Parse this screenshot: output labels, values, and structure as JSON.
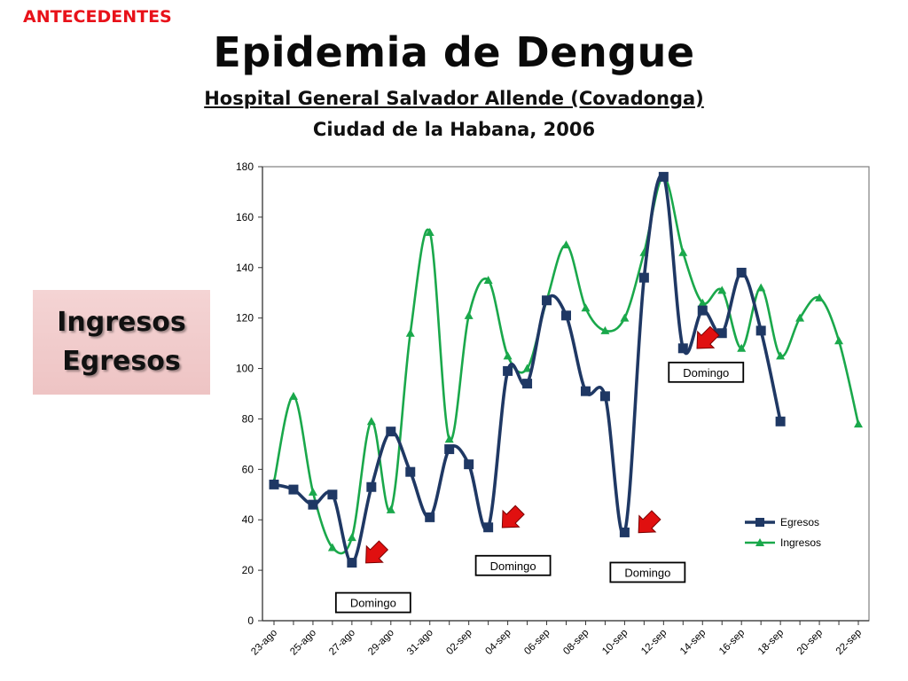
{
  "slide": {
    "section_label": "ANTECEDENTES",
    "title": "Epidemia de Dengue",
    "subtitle_line1": "Hospital General Salvador Allende (Covadonga)",
    "subtitle_line2": "Ciudad de la Habana, 2006",
    "side_box": {
      "line1": "Ingresos",
      "line2": "Egresos"
    }
  },
  "colors": {
    "egresos": "#1f3864",
    "ingresos": "#1aa84b",
    "section_label": "#e8121a",
    "arrow": "#e01010"
  },
  "chart_data": {
    "type": "line",
    "title": "",
    "xlabel": "",
    "ylabel": "",
    "ylim": [
      0,
      180
    ],
    "yticks": [
      0,
      20,
      40,
      60,
      80,
      100,
      120,
      140,
      160,
      180
    ],
    "grid": false,
    "legend_position": "bottom-right",
    "x": [
      "23-ago",
      "24-ago",
      "25-ago",
      "26-ago",
      "27-ago",
      "28-ago",
      "29-ago",
      "30-ago",
      "31-ago",
      "01-sep",
      "02-sep",
      "03-sep",
      "04-sep",
      "05-sep",
      "06-sep",
      "07-sep",
      "08-sep",
      "09-sep",
      "10-sep",
      "11-sep",
      "12-sep",
      "13-sep",
      "14-sep",
      "15-sep",
      "16-sep",
      "17-sep",
      "18-sep",
      "19-sep",
      "20-sep",
      "21-sep",
      "22-sep"
    ],
    "x_tick_labels": [
      "23-ago",
      "25-ago",
      "27-ago",
      "29-ago",
      "31-ago",
      "02-sep",
      "04-sep",
      "06-sep",
      "08-sep",
      "10-sep",
      "12-sep",
      "14-sep",
      "16-sep",
      "18-sep",
      "20-sep",
      "22-sep"
    ],
    "series": [
      {
        "name": "Egresos",
        "marker": "square",
        "values": [
          54,
          52,
          46,
          50,
          23,
          53,
          75,
          59,
          41,
          68,
          62,
          37,
          99,
          94,
          127,
          121,
          91,
          89,
          35,
          136,
          176,
          108,
          123,
          114,
          138,
          115,
          79,
          null,
          null,
          null,
          null
        ]
      },
      {
        "name": "Ingresos",
        "marker": "triangle",
        "values": [
          55,
          89,
          51,
          29,
          33,
          79,
          44,
          114,
          154,
          72,
          121,
          135,
          105,
          100,
          127,
          149,
          124,
          115,
          120,
          146,
          176,
          146,
          126,
          131,
          108,
          132,
          105,
          120,
          128,
          111,
          78
        ]
      }
    ],
    "annotations": [
      {
        "text": "Domingo",
        "x": "28-ago",
        "y": 23
      },
      {
        "text": "Domingo",
        "x": "04-sep",
        "y": 37
      },
      {
        "text": "Domingo",
        "x": "11-sep",
        "y": 35
      },
      {
        "text": "Domingo",
        "x": "14-sep",
        "y": 108
      }
    ]
  }
}
